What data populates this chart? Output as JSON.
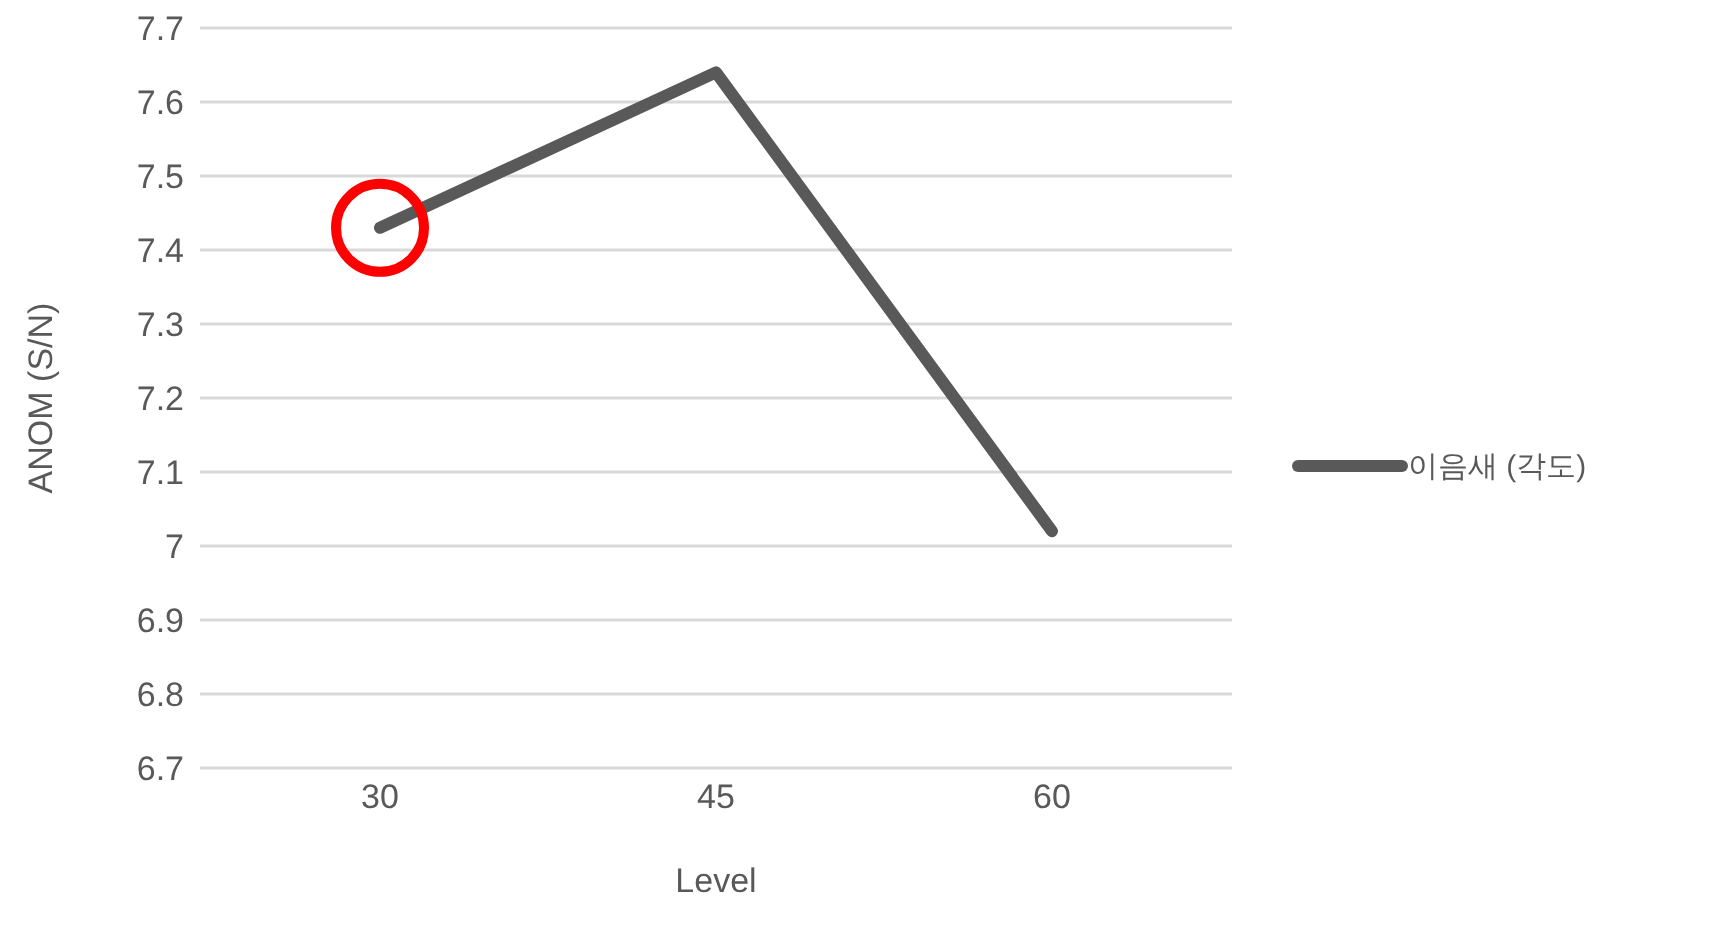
{
  "chart_data": {
    "type": "line",
    "xlabel": "Level",
    "ylabel": "ANOM (S/N)",
    "categories": [
      "30",
      "45",
      "60"
    ],
    "series": [
      {
        "name": "이음새 (각도)",
        "color": "#595959",
        "values": [
          7.43,
          7.64,
          7.02
        ]
      }
    ],
    "ylim": [
      6.7,
      7.7
    ],
    "yticks": [
      6.7,
      6.8,
      6.9,
      7,
      7.1,
      7.2,
      7.3,
      7.4,
      7.5,
      7.6,
      7.7
    ],
    "grid": "y",
    "legend": "right",
    "marker": "none",
    "line_style": "solid"
  }
}
